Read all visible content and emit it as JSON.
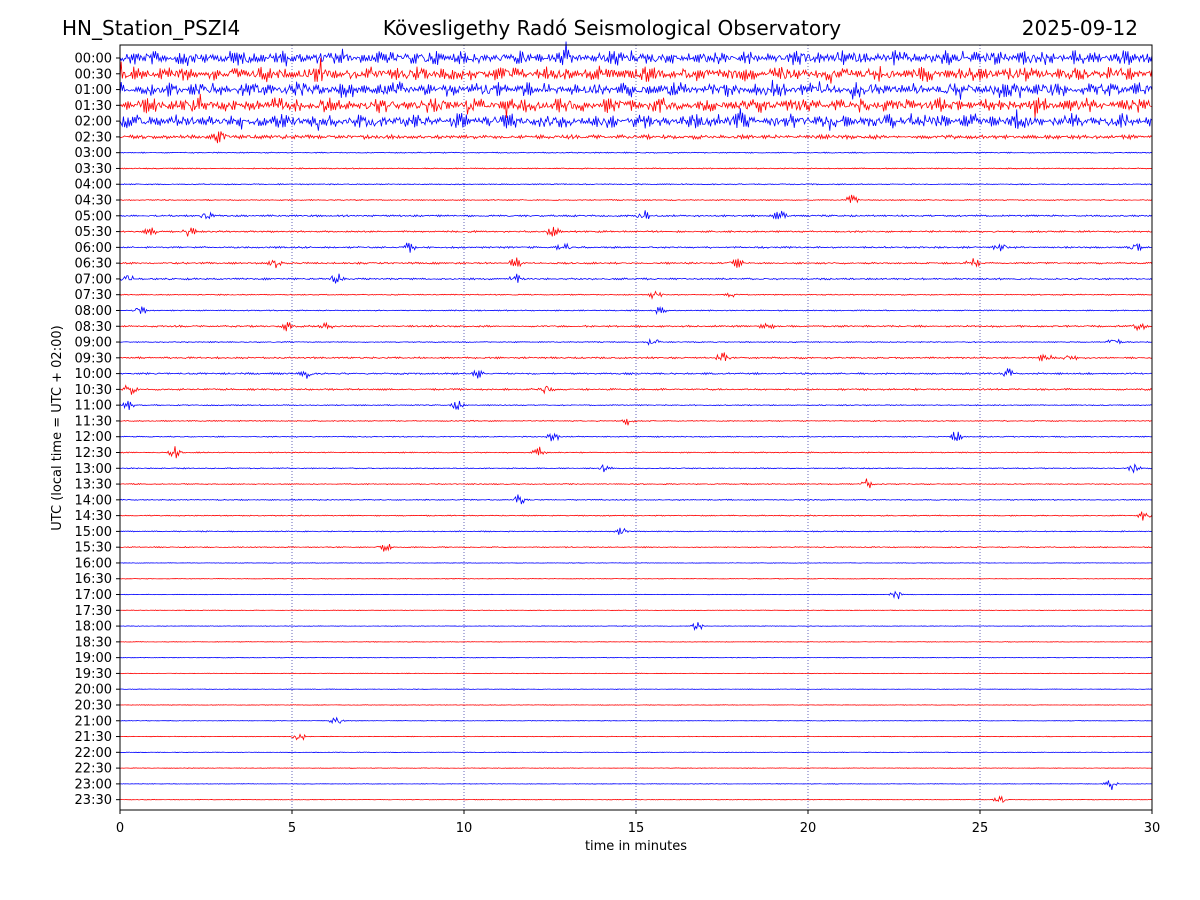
{
  "header": {
    "station": "HN_Station_PSZI4",
    "observatory": "Kövesligethy Radó Seismological Observatory",
    "date": "2025-09-12"
  },
  "chart_data": {
    "type": "line",
    "title": "Kövesligethy Radó Seismological Observatory",
    "xlabel": "time in minutes",
    "ylabel": "UTC (local time = UTC + 02:00)",
    "xlim": [
      0,
      30
    ],
    "xticks": [
      0,
      5,
      10,
      15,
      20,
      25,
      30
    ],
    "vertical_gridlines_at": [
      5,
      10,
      15,
      20,
      25
    ],
    "grid": "dotted vertical lines",
    "colors": [
      "#0000ff",
      "#ff0000"
    ],
    "rows": [
      {
        "label": "00:00",
        "color": "#0000ff",
        "activity": "strong",
        "events": []
      },
      {
        "label": "00:30",
        "color": "#ff0000",
        "activity": "strong",
        "events": []
      },
      {
        "label": "01:00",
        "color": "#0000ff",
        "activity": "strong",
        "events": []
      },
      {
        "label": "01:30",
        "color": "#ff0000",
        "activity": "strong",
        "events": []
      },
      {
        "label": "02:00",
        "color": "#0000ff",
        "activity": "strong",
        "events": [
          5.0
        ]
      },
      {
        "label": "02:30",
        "color": "#ff0000",
        "activity": "moderate",
        "events": [
          2.9
        ]
      },
      {
        "label": "03:00",
        "color": "#0000ff",
        "activity": "low",
        "events": []
      },
      {
        "label": "03:30",
        "color": "#ff0000",
        "activity": "low",
        "events": []
      },
      {
        "label": "04:00",
        "color": "#0000ff",
        "activity": "low",
        "events": []
      },
      {
        "label": "04:30",
        "color": "#ff0000",
        "activity": "low",
        "events": [
          21.3
        ]
      },
      {
        "label": "05:00",
        "color": "#0000ff",
        "activity": "medium",
        "events": [
          2.5,
          15.2,
          19.2
        ]
      },
      {
        "label": "05:30",
        "color": "#ff0000",
        "activity": "medium",
        "events": [
          0.9,
          2.0,
          12.6
        ]
      },
      {
        "label": "06:00",
        "color": "#0000ff",
        "activity": "medium",
        "events": [
          8.4,
          12.9,
          25.6,
          29.5
        ]
      },
      {
        "label": "06:30",
        "color": "#ff0000",
        "activity": "medium",
        "events": [
          4.5,
          11.5,
          17.9,
          24.8
        ]
      },
      {
        "label": "07:00",
        "color": "#0000ff",
        "activity": "medium",
        "events": [
          0.2,
          6.3,
          11.5
        ]
      },
      {
        "label": "07:30",
        "color": "#ff0000",
        "activity": "low",
        "events": [
          15.6,
          17.8
        ]
      },
      {
        "label": "08:00",
        "color": "#0000ff",
        "activity": "low",
        "events": [
          0.6,
          15.7
        ]
      },
      {
        "label": "08:30",
        "color": "#ff0000",
        "activity": "medium",
        "events": [
          4.9,
          6.0,
          18.8,
          29.6
        ]
      },
      {
        "label": "09:00",
        "color": "#0000ff",
        "activity": "low",
        "events": [
          15.5,
          28.9
        ]
      },
      {
        "label": "09:30",
        "color": "#ff0000",
        "activity": "medium",
        "events": [
          17.5,
          26.9,
          27.6
        ]
      },
      {
        "label": "10:00",
        "color": "#0000ff",
        "activity": "medium",
        "events": [
          5.4,
          10.4,
          25.8
        ]
      },
      {
        "label": "10:30",
        "color": "#ff0000",
        "activity": "medium",
        "events": [
          0.3,
          12.4
        ]
      },
      {
        "label": "11:00",
        "color": "#0000ff",
        "activity": "low",
        "events": [
          0.2,
          9.8
        ]
      },
      {
        "label": "11:30",
        "color": "#ff0000",
        "activity": "low",
        "events": [
          14.8
        ]
      },
      {
        "label": "12:00",
        "color": "#0000ff",
        "activity": "low",
        "events": [
          12.6,
          24.3
        ]
      },
      {
        "label": "12:30",
        "color": "#ff0000",
        "activity": "low",
        "events": [
          1.6,
          12.2
        ]
      },
      {
        "label": "13:00",
        "color": "#0000ff",
        "activity": "low",
        "events": [
          14.1,
          29.5
        ]
      },
      {
        "label": "13:30",
        "color": "#ff0000",
        "activity": "low",
        "events": [
          21.7
        ]
      },
      {
        "label": "14:00",
        "color": "#0000ff",
        "activity": "low",
        "events": [
          11.6
        ]
      },
      {
        "label": "14:30",
        "color": "#ff0000",
        "activity": "low",
        "events": [
          29.8
        ]
      },
      {
        "label": "15:00",
        "color": "#0000ff",
        "activity": "low",
        "events": [
          14.6
        ]
      },
      {
        "label": "15:30",
        "color": "#ff0000",
        "activity": "low",
        "events": [
          7.7
        ]
      },
      {
        "label": "16:00",
        "color": "#0000ff",
        "activity": "quiet",
        "events": []
      },
      {
        "label": "16:30",
        "color": "#ff0000",
        "activity": "quiet",
        "events": []
      },
      {
        "label": "17:00",
        "color": "#0000ff",
        "activity": "quiet",
        "events": [
          22.6
        ]
      },
      {
        "label": "17:30",
        "color": "#ff0000",
        "activity": "quiet",
        "events": []
      },
      {
        "label": "18:00",
        "color": "#0000ff",
        "activity": "quiet",
        "events": [
          16.8
        ]
      },
      {
        "label": "18:30",
        "color": "#ff0000",
        "activity": "quiet",
        "events": []
      },
      {
        "label": "19:00",
        "color": "#0000ff",
        "activity": "quiet",
        "events": []
      },
      {
        "label": "19:30",
        "color": "#ff0000",
        "activity": "quiet",
        "events": []
      },
      {
        "label": "20:00",
        "color": "#0000ff",
        "activity": "quiet",
        "events": []
      },
      {
        "label": "20:30",
        "color": "#ff0000",
        "activity": "quiet",
        "events": []
      },
      {
        "label": "21:00",
        "color": "#0000ff",
        "activity": "quiet",
        "events": [
          6.3
        ]
      },
      {
        "label": "21:30",
        "color": "#ff0000",
        "activity": "quiet",
        "events": [
          5.2
        ]
      },
      {
        "label": "22:00",
        "color": "#0000ff",
        "activity": "quiet",
        "events": []
      },
      {
        "label": "22:30",
        "color": "#ff0000",
        "activity": "quiet",
        "events": []
      },
      {
        "label": "23:00",
        "color": "#0000ff",
        "activity": "quiet",
        "events": [
          28.8
        ]
      },
      {
        "label": "23:30",
        "color": "#ff0000",
        "activity": "quiet",
        "events": [
          25.6
        ]
      }
    ]
  }
}
